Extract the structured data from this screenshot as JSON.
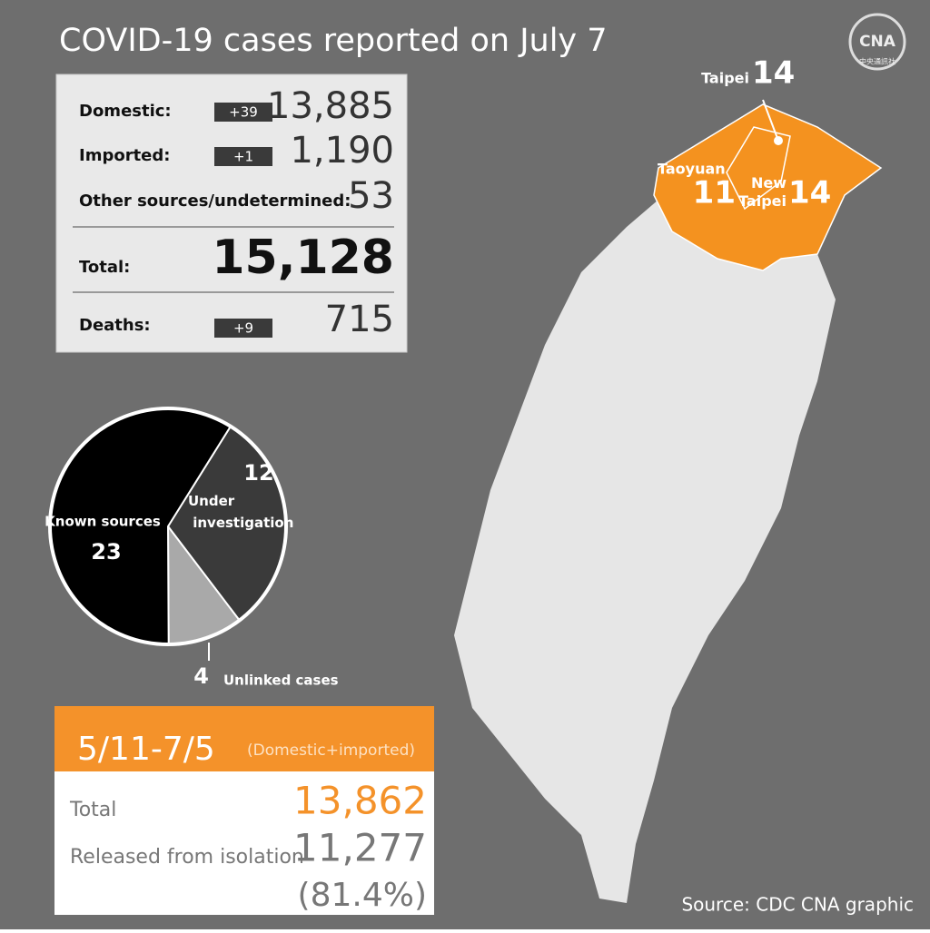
{
  "header": {
    "title": "COVID-19 cases reported on July 7",
    "logo": "CNA",
    "logo_sub": "中央通訊社"
  },
  "stats": {
    "rows": [
      {
        "label": "Domestic:",
        "change": "+39",
        "value": "13,885"
      },
      {
        "label": "Imported:",
        "change": "+1",
        "value": "1,190"
      },
      {
        "label": "Other sources/undetermined:",
        "value": "53"
      }
    ],
    "total": {
      "label": "Total:",
      "value": "15,128"
    },
    "deaths": {
      "label": "Deaths:",
      "change": "+9",
      "value": "715"
    }
  },
  "chart_data": {
    "type": "pie",
    "categories": [
      "Known sources",
      "Under investigation",
      "Unlinked cases"
    ],
    "values": [
      23,
      12,
      4
    ],
    "colors": [
      "#000000",
      "#3a3a3a",
      "#a9a9a9"
    ]
  },
  "map": {
    "regions": [
      {
        "name": "Taipei",
        "value": 14
      },
      {
        "name": "Taoyuan",
        "value": 11
      },
      {
        "name": "New Taipei",
        "value": 14
      }
    ]
  },
  "period": {
    "range": "5/11-7/5",
    "note": "(Domestic+imported)",
    "rows": [
      {
        "label": "Total",
        "value": "13,862"
      },
      {
        "label": "Released from isolation",
        "value": "11,277",
        "share": "(81.4%)"
      }
    ]
  },
  "footer": {
    "source": "Source: CDC  CNA graphic"
  }
}
